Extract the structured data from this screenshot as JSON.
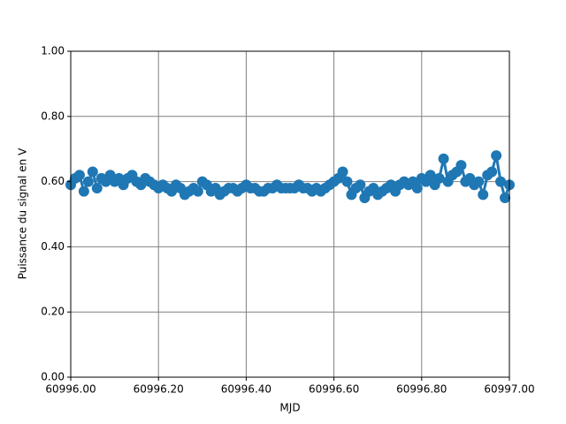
{
  "chart_data": {
    "type": "line",
    "xlabel": "MJD",
    "ylabel": "Puissance du signal en V",
    "x": [
      60996.0,
      60996.01,
      60996.02,
      60996.03,
      60996.04,
      60996.05,
      60996.06,
      60996.07,
      60996.08,
      60996.09,
      60996.1,
      60996.11,
      60996.12,
      60996.13,
      60996.14,
      60996.15,
      60996.16,
      60996.17,
      60996.18,
      60996.19,
      60996.2,
      60996.21,
      60996.22,
      60996.23,
      60996.24,
      60996.25,
      60996.26,
      60996.27,
      60996.28,
      60996.29,
      60996.3,
      60996.31,
      60996.32,
      60996.33,
      60996.34,
      60996.35,
      60996.36,
      60996.37,
      60996.38,
      60996.39,
      60996.4,
      60996.41,
      60996.42,
      60996.43,
      60996.44,
      60996.45,
      60996.46,
      60996.47,
      60996.48,
      60996.49,
      60996.5,
      60996.51,
      60996.52,
      60996.53,
      60996.54,
      60996.55,
      60996.56,
      60996.57,
      60996.58,
      60996.59,
      60996.6,
      60996.61,
      60996.62,
      60996.63,
      60996.64,
      60996.65,
      60996.66,
      60996.67,
      60996.68,
      60996.69,
      60996.7,
      60996.71,
      60996.72,
      60996.73,
      60996.74,
      60996.75,
      60996.76,
      60996.77,
      60996.78,
      60996.79,
      60996.8,
      60996.81,
      60996.82,
      60996.83,
      60996.84,
      60996.85,
      60996.86,
      60996.87,
      60996.88,
      60996.89,
      60996.9,
      60996.91,
      60996.92,
      60996.93,
      60996.94,
      60996.95,
      60996.96,
      60996.97,
      60996.98,
      60996.99,
      60997.0
    ],
    "values": [
      0.59,
      0.61,
      0.62,
      0.57,
      0.6,
      0.63,
      0.58,
      0.61,
      0.6,
      0.62,
      0.6,
      0.61,
      0.59,
      0.61,
      0.62,
      0.6,
      0.59,
      0.61,
      0.6,
      0.59,
      0.58,
      0.59,
      0.58,
      0.57,
      0.59,
      0.58,
      0.56,
      0.57,
      0.58,
      0.57,
      0.6,
      0.59,
      0.57,
      0.58,
      0.56,
      0.57,
      0.58,
      0.58,
      0.57,
      0.58,
      0.59,
      0.58,
      0.58,
      0.57,
      0.57,
      0.58,
      0.58,
      0.59,
      0.58,
      0.58,
      0.58,
      0.58,
      0.59,
      0.58,
      0.58,
      0.57,
      0.58,
      0.57,
      0.58,
      0.59,
      0.6,
      0.61,
      0.63,
      0.6,
      0.56,
      0.58,
      0.59,
      0.55,
      0.57,
      0.58,
      0.56,
      0.57,
      0.58,
      0.59,
      0.57,
      0.59,
      0.6,
      0.59,
      0.6,
      0.58,
      0.61,
      0.6,
      0.62,
      0.59,
      0.61,
      0.67,
      0.6,
      0.62,
      0.63,
      0.65,
      0.6,
      0.61,
      0.59,
      0.6,
      0.56,
      0.62,
      0.63,
      0.68,
      0.6,
      0.55,
      0.59
    ],
    "color": "#1f77b4",
    "xlim": [
      60996,
      60997
    ],
    "xticks": [
      {
        "value": 60996,
        "label": "60996.00"
      },
      {
        "value": 60996.2,
        "label": "60996.20"
      },
      {
        "value": 60996.4,
        "label": "60996.40"
      },
      {
        "value": 60996.6,
        "label": "60996.60"
      },
      {
        "value": 60996.8,
        "label": "60996.80"
      },
      {
        "value": 60997,
        "label": "60997.00"
      }
    ],
    "ylim": [
      0,
      1
    ],
    "yticks": [
      {
        "value": 0,
        "label": "0.00"
      },
      {
        "value": 0.2,
        "label": "0.20"
      },
      {
        "value": 0.4,
        "label": "0.40"
      },
      {
        "value": 0.6,
        "label": "0.60"
      },
      {
        "value": 0.8,
        "label": "0.80"
      },
      {
        "value": 1,
        "label": "1.00"
      }
    ],
    "grid": true
  }
}
